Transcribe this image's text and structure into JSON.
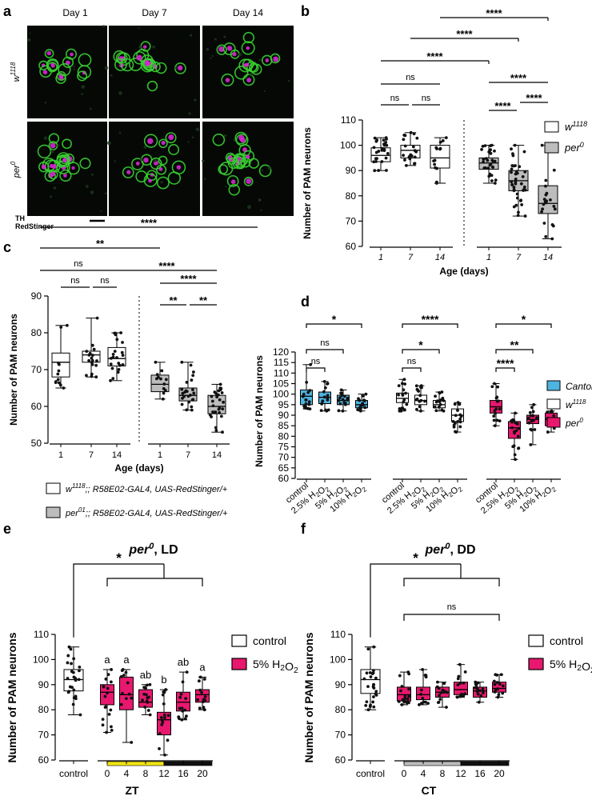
{
  "figure": {
    "panel_letters": [
      "a",
      "b",
      "c",
      "d",
      "e",
      "f"
    ]
  },
  "panel_a": {
    "columns": [
      "Day 1",
      "Day 7",
      "Day 14"
    ],
    "rows": [
      "w1118",
      "per0"
    ],
    "channel_labels": [
      {
        "text": "TH",
        "color": "#00c04b"
      },
      {
        "text": "RedStinger",
        "color": "#e024d8"
      }
    ],
    "colors": {
      "green": "#39d232",
      "magenta": "#d429d0"
    }
  },
  "chart_data": [
    {
      "panel": "b",
      "type": "box",
      "ylabel": "Number of PAM neurons",
      "xlabel": "Age (days)",
      "ylim": [
        60,
        110
      ],
      "yticks": [
        60,
        70,
        80,
        90,
        100,
        110
      ],
      "categories": [
        "1",
        "7",
        "14",
        "1",
        "7",
        "14"
      ],
      "legend": [
        {
          "label": "w",
          "sup": "1118",
          "fill": "#ffffff"
        },
        {
          "label": "per",
          "sup": "0",
          "fill": "#bdbdbd"
        }
      ],
      "legend_position": "right",
      "groups": [
        {
          "genotype": "w1118",
          "fill": "#ffffff",
          "boxes": [
            {
              "age": "1",
              "min": 90,
              "q1": 93.5,
              "median": 96,
              "q3": 99,
              "max": 103
            },
            {
              "age": "7",
              "min": 92,
              "q1": 95,
              "median": 98,
              "q3": 100,
              "max": 105
            },
            {
              "age": "14",
              "min": 85,
              "q1": 91,
              "median": 95,
              "q3": 100,
              "max": 103
            }
          ]
        },
        {
          "genotype": "per0",
          "fill": "#bdbdbd",
          "boxes": [
            {
              "age": "1",
              "min": 85,
              "q1": 90.5,
              "median": 93,
              "q3": 95,
              "max": 100
            },
            {
              "age": "7",
              "min": 72,
              "q1": 82,
              "median": 86,
              "q3": 90,
              "max": 100
            },
            {
              "age": "14",
              "min": 63,
              "q1": 73,
              "median": 77,
              "q3": 84,
              "max": 100
            }
          ]
        }
      ],
      "significance": [
        {
          "from": 0,
          "to": 1,
          "label": "ns"
        },
        {
          "from": 1,
          "to": 2,
          "label": "ns"
        },
        {
          "from": 0,
          "to": 2,
          "label": "ns"
        },
        {
          "from": 0,
          "to": 3,
          "label": "****"
        },
        {
          "from": 1,
          "to": 4,
          "label": "****"
        },
        {
          "from": 2,
          "to": 5,
          "label": "****"
        },
        {
          "from": 3,
          "to": 4,
          "label": "****"
        },
        {
          "from": 4,
          "to": 5,
          "label": "****"
        },
        {
          "from": 3,
          "to": 5,
          "label": "****"
        }
      ]
    },
    {
      "panel": "c",
      "type": "box",
      "ylabel": "Number of PAM  neurons",
      "xlabel": "Age (days)",
      "ylim": [
        50,
        90
      ],
      "yticks": [
        50,
        60,
        70,
        80,
        90
      ],
      "categories": [
        "1",
        "7",
        "14",
        "1",
        "7",
        "14"
      ],
      "legend": [
        {
          "label": "w",
          "sup": "1118",
          "rest": ";; R58E02-GAL4, UAS-RedStinger/+",
          "fill": "#ffffff"
        },
        {
          "label": "per",
          "sup": "01",
          "rest": ";; R58E02-GAL4, UAS-RedStinger/+",
          "fill": "#bdbdbd"
        }
      ],
      "legend_position": "bottom",
      "groups": [
        {
          "genotype": "w1118",
          "fill": "#ffffff",
          "boxes": [
            {
              "age": "1",
              "min": 65,
              "q1": 68,
              "median": 72,
              "q3": 74.5,
              "max": 82
            },
            {
              "age": "7",
              "min": 68,
              "q1": 72,
              "median": 74,
              "q3": 75,
              "max": 84
            },
            {
              "age": "14",
              "min": 67,
              "q1": 71,
              "median": 73,
              "q3": 76,
              "max": 80
            }
          ]
        },
        {
          "genotype": "per01",
          "fill": "#bdbdbd",
          "boxes": [
            {
              "age": "1",
              "min": 62,
              "q1": 64,
              "median": 66,
              "q3": 68.5,
              "max": 72
            },
            {
              "age": "7",
              "min": 59,
              "q1": 61.5,
              "median": 63,
              "q3": 65,
              "max": 72
            },
            {
              "age": "14",
              "min": 53,
              "q1": 58,
              "median": 60,
              "q3": 63,
              "max": 66
            }
          ]
        }
      ],
      "significance": [
        {
          "from": 0,
          "to": 1,
          "label": "ns"
        },
        {
          "from": 1,
          "to": 2,
          "label": "ns"
        },
        {
          "from": 0,
          "to": 2,
          "label": "ns"
        },
        {
          "from": 0,
          "to": 3,
          "label": "**"
        },
        {
          "from": 2,
          "to": 5,
          "label": "****"
        },
        {
          "from": 3,
          "to": 4,
          "label": "**"
        },
        {
          "from": 4,
          "to": 5,
          "label": "**"
        },
        {
          "from": 3,
          "to": 5,
          "label": "****"
        }
      ]
    },
    {
      "panel": "d",
      "type": "box",
      "ylabel": "Number of PAM neurons",
      "ylim": [
        60,
        120
      ],
      "yticks": [
        60,
        65,
        70,
        75,
        80,
        85,
        90,
        95,
        100,
        105,
        110,
        115,
        120
      ],
      "categories": [
        "control",
        "2.5% H2O2",
        "5% H2O2",
        "10% H2O2"
      ],
      "legend": [
        {
          "label": "Canton-S",
          "sup": "",
          "fill": "#4fb3e0"
        },
        {
          "label": "w",
          "sup": "1118",
          "fill": "#ffffff"
        },
        {
          "label": "per",
          "sup": "0",
          "fill": "#e8186e"
        }
      ],
      "legend_position": "right",
      "groups": [
        {
          "genotype": "Canton-S",
          "fill": "#4fb3e0",
          "boxes": [
            {
              "t": "control",
              "min": 93,
              "q1": 95,
              "median": 99,
              "q3": 102,
              "max": 114
            },
            {
              "t": "2.5% H2O2",
              "min": 92,
              "q1": 95.5,
              "median": 98.5,
              "q3": 101,
              "max": 106
            },
            {
              "t": "5% H2O2",
              "min": 92,
              "q1": 95,
              "median": 97,
              "q3": 99.5,
              "max": 102
            },
            {
              "t": "10% H2O2",
              "min": 92,
              "q1": 93.5,
              "median": 95,
              "q3": 97,
              "max": 100
            }
          ]
        },
        {
          "genotype": "w1118",
          "fill": "#ffffff",
          "boxes": [
            {
              "t": "control",
              "min": 92,
              "q1": 96,
              "median": 98,
              "q3": 100.5,
              "max": 107
            },
            {
              "t": "2.5% H2O2",
              "min": 92,
              "q1": 95,
              "median": 97,
              "q3": 99.5,
              "max": 104
            },
            {
              "t": "5% H2O2",
              "min": 92,
              "q1": 93.5,
              "median": 95,
              "q3": 97,
              "max": 101
            },
            {
              "t": "10% H2O2",
              "min": 82,
              "q1": 87,
              "median": 90,
              "q3": 93,
              "max": 96
            }
          ]
        },
        {
          "genotype": "per0",
          "fill": "#e8186e",
          "boxes": [
            {
              "t": "control",
              "min": 85,
              "q1": 91,
              "median": 94,
              "q3": 97,
              "max": 105
            },
            {
              "t": "2.5% H2O2",
              "min": 69,
              "q1": 79,
              "median": 84,
              "q3": 87,
              "max": 91
            },
            {
              "t": "5% H2O2",
              "min": 76,
              "q1": 86,
              "median": 88,
              "q3": 90,
              "max": 95
            },
            {
              "t": "10% H2O2",
              "min": 82,
              "q1": 85,
              "median": 88,
              "q3": 91,
              "max": 92
            }
          ]
        }
      ],
      "significance": [
        {
          "group": 0,
          "from": 0,
          "to": 1,
          "label": "ns"
        },
        {
          "group": 0,
          "from": 0,
          "to": 2,
          "label": "ns"
        },
        {
          "group": 0,
          "from": 0,
          "to": 3,
          "label": "*"
        },
        {
          "group": 1,
          "from": 0,
          "to": 1,
          "label": "ns"
        },
        {
          "group": 1,
          "from": 0,
          "to": 2,
          "label": "*"
        },
        {
          "group": 1,
          "from": 0,
          "to": 3,
          "label": "****"
        },
        {
          "group": 2,
          "from": 0,
          "to": 1,
          "label": "****"
        },
        {
          "group": 2,
          "from": 0,
          "to": 2,
          "label": "**"
        },
        {
          "group": 2,
          "from": 0,
          "to": 3,
          "label": "*"
        }
      ]
    },
    {
      "panel": "e",
      "type": "box",
      "title": "per0, LD",
      "ylabel": "Number of PAM neurons",
      "xlabel": "ZT",
      "ylim": [
        60,
        110
      ],
      "yticks": [
        60,
        70,
        80,
        90,
        100,
        110
      ],
      "categories": [
        "control",
        "0",
        "4",
        "8",
        "12",
        "16",
        "20"
      ],
      "legend": [
        {
          "label": "control",
          "sup": "",
          "fill": "#ffffff"
        },
        {
          "label": "5% H2O2",
          "sup": "",
          "fill": "#e8186e"
        }
      ],
      "legend_position": "right",
      "timebar": [
        {
          "from": "0",
          "to": "12",
          "color": "#f2e613"
        },
        {
          "from": "12",
          "to": "20",
          "color": "#111111"
        }
      ],
      "boxes": [
        {
          "x": "control",
          "min": 78,
          "q1": 87.5,
          "median": 92,
          "q3": 96,
          "max": 105,
          "fill": "#ffffff",
          "letter": ""
        },
        {
          "x": "0",
          "min": 71,
          "q1": 82,
          "median": 87,
          "q3": 90,
          "max": 96,
          "fill": "#e8186e",
          "letter": "a"
        },
        {
          "x": "4",
          "min": 67,
          "q1": 80,
          "median": 86,
          "q3": 93,
          "max": 96,
          "fill": "#e8186e",
          "letter": "a"
        },
        {
          "x": "8",
          "min": 78,
          "q1": 81,
          "median": 83,
          "q3": 88,
          "max": 90,
          "fill": "#e8186e",
          "letter": "ab"
        },
        {
          "x": "12",
          "min": 62,
          "q1": 70,
          "median": 76,
          "q3": 79,
          "max": 88,
          "fill": "#e8186e",
          "letter": "b"
        },
        {
          "x": "16",
          "min": 76,
          "q1": 79.5,
          "median": 83,
          "q3": 87,
          "max": 95,
          "fill": "#e8186e",
          "letter": "ab"
        },
        {
          "x": "20",
          "min": 80,
          "q1": 83,
          "median": 86,
          "q3": 88,
          "max": 93,
          "fill": "#e8186e",
          "letter": "a"
        }
      ],
      "significance": [
        {
          "label": "*"
        }
      ]
    },
    {
      "panel": "f",
      "type": "box",
      "title": "per0, DD",
      "ylabel": "Number of PAM neurons",
      "xlabel": "CT",
      "ylim": [
        60,
        110
      ],
      "yticks": [
        60,
        70,
        80,
        90,
        100,
        110
      ],
      "categories": [
        "control",
        "0",
        "4",
        "8",
        "12",
        "16",
        "20"
      ],
      "legend": [
        {
          "label": "control",
          "sup": "",
          "fill": "#ffffff"
        },
        {
          "label": "5% H2O2",
          "sup": "",
          "fill": "#e8186e"
        }
      ],
      "legend_position": "right",
      "timebar": [
        {
          "from": "0",
          "to": "12",
          "color": "#bcbcbc"
        },
        {
          "from": "12",
          "to": "20",
          "color": "#111111"
        }
      ],
      "boxes": [
        {
          "x": "control",
          "min": 80,
          "q1": 86.5,
          "median": 92,
          "q3": 96,
          "max": 105,
          "fill": "#ffffff",
          "letter": ""
        },
        {
          "x": "0",
          "min": 82,
          "q1": 83.5,
          "median": 86,
          "q3": 89,
          "max": 95,
          "fill": "#e8186e",
          "letter": ""
        },
        {
          "x": "4",
          "min": 82,
          "q1": 84,
          "median": 86,
          "q3": 89,
          "max": 96,
          "fill": "#e8186e",
          "letter": ""
        },
        {
          "x": "8",
          "min": 81,
          "q1": 85,
          "median": 87,
          "q3": 89,
          "max": 91,
          "fill": "#e8186e",
          "letter": ""
        },
        {
          "x": "12",
          "min": 85,
          "q1": 86,
          "median": 88,
          "q3": 91,
          "max": 98,
          "fill": "#e8186e",
          "letter": ""
        },
        {
          "x": "16",
          "min": 83,
          "q1": 85,
          "median": 87.5,
          "q3": 89,
          "max": 91,
          "fill": "#e8186e",
          "letter": ""
        },
        {
          "x": "20",
          "min": 85,
          "q1": 87,
          "median": 88.5,
          "q3": 91,
          "max": 94,
          "fill": "#e8186e",
          "letter": ""
        }
      ],
      "significance": [
        {
          "label": "*"
        },
        {
          "label": "ns"
        }
      ]
    }
  ]
}
